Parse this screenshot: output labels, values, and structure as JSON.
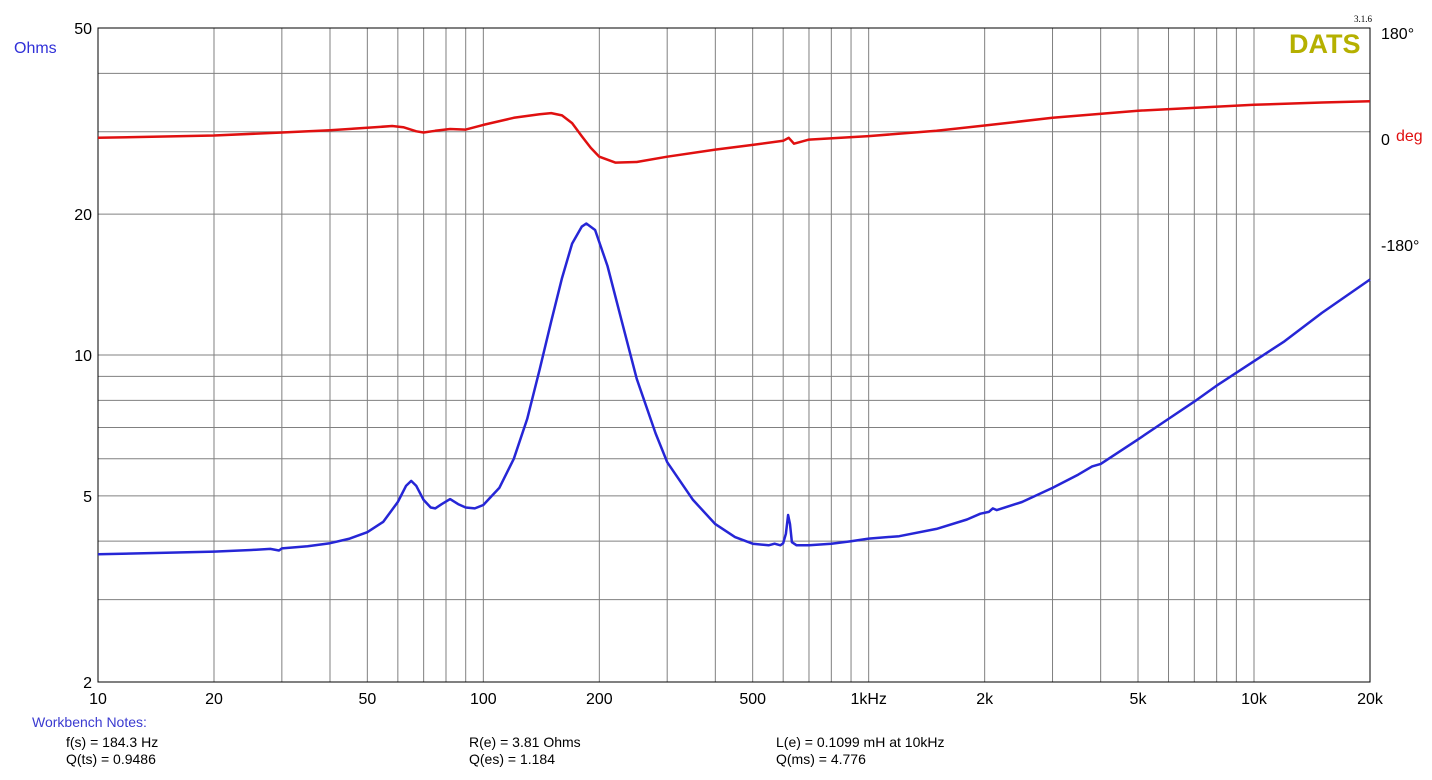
{
  "colors": {
    "impedance": "#2626d6",
    "phase": "#e01010",
    "grid": "#808080",
    "brand": "#b5b000",
    "ohms_label": "#3030d8",
    "deg_label": "#e01010"
  },
  "brand": {
    "name": "DATS",
    "version": "3.1.6"
  },
  "chart_data": {
    "type": "line",
    "x_scale": "log",
    "y_scale": "log",
    "xlim": [
      10,
      20000
    ],
    "ylim": [
      2,
      50
    ],
    "y2lim": [
      -180,
      180
    ],
    "grid": true,
    "y_unit_label": "Ohms",
    "y2_unit_label": "deg",
    "x_tick_labels": [
      {
        "value": 10,
        "label": "10"
      },
      {
        "value": 20,
        "label": "20"
      },
      {
        "value": 50,
        "label": "50"
      },
      {
        "value": 100,
        "label": "100"
      },
      {
        "value": 200,
        "label": "200"
      },
      {
        "value": 500,
        "label": "500"
      },
      {
        "value": 1000,
        "label": "1kHz"
      },
      {
        "value": 2000,
        "label": "2k"
      },
      {
        "value": 5000,
        "label": "5k"
      },
      {
        "value": 10000,
        "label": "10k"
      },
      {
        "value": 20000,
        "label": "20k"
      }
    ],
    "y_tick_labels": [
      {
        "value": 50,
        "label": "50"
      },
      {
        "value": 20,
        "label": "20"
      },
      {
        "value": 10,
        "label": "10"
      },
      {
        "value": 5,
        "label": "5"
      },
      {
        "value": 2,
        "label": "2"
      }
    ],
    "y2_tick_labels": [
      {
        "value": 180,
        "label": "180°"
      },
      {
        "value": 0,
        "label": "0"
      },
      {
        "value": -180,
        "label": "-180°"
      }
    ],
    "series": [
      {
        "key": "impedance",
        "axis": "left",
        "points": [
          [
            10,
            3.75
          ],
          [
            15,
            3.78
          ],
          [
            20,
            3.8
          ],
          [
            25,
            3.83
          ],
          [
            28,
            3.85
          ],
          [
            29.5,
            3.82
          ],
          [
            30,
            3.86
          ],
          [
            35,
            3.9
          ],
          [
            40,
            3.96
          ],
          [
            45,
            4.05
          ],
          [
            50,
            4.18
          ],
          [
            55,
            4.4
          ],
          [
            60,
            4.85
          ],
          [
            63,
            5.25
          ],
          [
            65,
            5.38
          ],
          [
            67,
            5.25
          ],
          [
            70,
            4.9
          ],
          [
            73,
            4.72
          ],
          [
            75,
            4.7
          ],
          [
            78,
            4.8
          ],
          [
            82,
            4.92
          ],
          [
            86,
            4.8
          ],
          [
            90,
            4.72
          ],
          [
            95,
            4.7
          ],
          [
            100,
            4.78
          ],
          [
            110,
            5.2
          ],
          [
            120,
            6.0
          ],
          [
            130,
            7.3
          ],
          [
            140,
            9.3
          ],
          [
            150,
            11.8
          ],
          [
            160,
            14.6
          ],
          [
            170,
            17.3
          ],
          [
            180,
            18.8
          ],
          [
            185,
            19.1
          ],
          [
            195,
            18.5
          ],
          [
            210,
            15.5
          ],
          [
            230,
            11.6
          ],
          [
            250,
            8.9
          ],
          [
            280,
            6.8
          ],
          [
            300,
            5.9
          ],
          [
            350,
            4.9
          ],
          [
            400,
            4.35
          ],
          [
            450,
            4.08
          ],
          [
            500,
            3.95
          ],
          [
            550,
            3.92
          ],
          [
            570,
            3.95
          ],
          [
            590,
            3.92
          ],
          [
            600,
            3.96
          ],
          [
            610,
            4.15
          ],
          [
            618,
            4.55
          ],
          [
            625,
            4.35
          ],
          [
            632,
            3.98
          ],
          [
            650,
            3.92
          ],
          [
            700,
            3.92
          ],
          [
            800,
            3.95
          ],
          [
            900,
            4.0
          ],
          [
            1000,
            4.05
          ],
          [
            1200,
            4.1
          ],
          [
            1500,
            4.25
          ],
          [
            1800,
            4.45
          ],
          [
            1950,
            4.58
          ],
          [
            2050,
            4.62
          ],
          [
            2100,
            4.7
          ],
          [
            2150,
            4.66
          ],
          [
            2500,
            4.85
          ],
          [
            3000,
            5.2
          ],
          [
            3500,
            5.55
          ],
          [
            3800,
            5.78
          ],
          [
            4000,
            5.85
          ],
          [
            5000,
            6.6
          ],
          [
            6000,
            7.3
          ],
          [
            7000,
            7.95
          ],
          [
            8000,
            8.6
          ],
          [
            10000,
            9.7
          ],
          [
            12000,
            10.7
          ],
          [
            15000,
            12.3
          ],
          [
            20000,
            14.5
          ]
        ]
      },
      {
        "key": "phase",
        "axis": "right",
        "points": [
          [
            10,
            2
          ],
          [
            20,
            6
          ],
          [
            30,
            11
          ],
          [
            40,
            15
          ],
          [
            50,
            19
          ],
          [
            58,
            22
          ],
          [
            62,
            20
          ],
          [
            67,
            13
          ],
          [
            70,
            11
          ],
          [
            75,
            14
          ],
          [
            82,
            17
          ],
          [
            90,
            16
          ],
          [
            100,
            24
          ],
          [
            120,
            36
          ],
          [
            140,
            42
          ],
          [
            150,
            44
          ],
          [
            160,
            40
          ],
          [
            170,
            27
          ],
          [
            180,
            5
          ],
          [
            190,
            -15
          ],
          [
            200,
            -30
          ],
          [
            220,
            -40
          ],
          [
            250,
            -39
          ],
          [
            300,
            -30
          ],
          [
            400,
            -18
          ],
          [
            500,
            -10
          ],
          [
            600,
            -3
          ],
          [
            620,
            2
          ],
          [
            640,
            -8
          ],
          [
            700,
            -1
          ],
          [
            1000,
            5
          ],
          [
            1500,
            14
          ],
          [
            2000,
            23
          ],
          [
            3000,
            36
          ],
          [
            5000,
            48
          ],
          [
            10000,
            58
          ],
          [
            15000,
            62
          ],
          [
            20000,
            64
          ]
        ]
      }
    ]
  },
  "notes": {
    "title": "Workbench Notes:",
    "fs": "f(s) = 184.3 Hz",
    "qts": "Q(ts) = 0.9486",
    "re": "R(e) = 3.81 Ohms",
    "qes": "Q(es) = 1.184",
    "le": "L(e) = 0.1099 mH at 10kHz",
    "qms": "Q(ms) = 4.776"
  }
}
